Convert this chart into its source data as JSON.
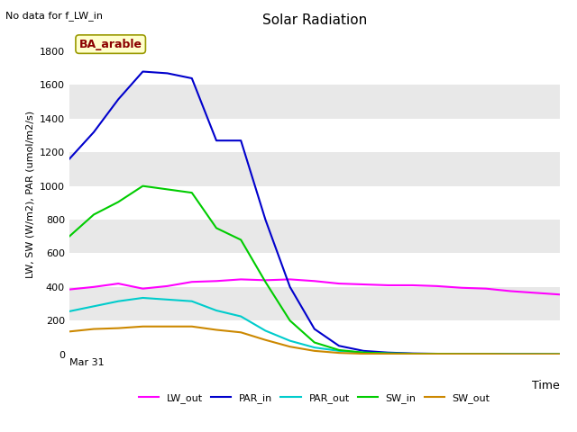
{
  "title": "Solar Radiation",
  "note": "No data for f_LW_in",
  "xlabel": "Time",
  "ylabel": "LW, SW (W/m2), PAR (umol/m2/s)",
  "annotation": "BA_arable",
  "ylim": [
    0,
    1900
  ],
  "yticks": [
    0,
    200,
    400,
    600,
    800,
    1000,
    1200,
    1400,
    1600,
    1800
  ],
  "x_start_label": "Mar 31",
  "series": {
    "LW_out": {
      "color": "#ff00ff",
      "x": [
        0,
        1,
        2,
        3,
        4,
        5,
        6,
        7,
        8,
        9,
        10,
        11,
        12,
        13,
        14,
        15,
        16,
        17,
        18,
        19,
        20
      ],
      "y": [
        385,
        400,
        420,
        390,
        405,
        430,
        435,
        445,
        440,
        445,
        435,
        420,
        415,
        410,
        410,
        405,
        395,
        390,
        375,
        365,
        355
      ]
    },
    "PAR_in": {
      "color": "#0000cc",
      "x": [
        0,
        1,
        2,
        3,
        4,
        5,
        6,
        7,
        8,
        9,
        10,
        11,
        12,
        13,
        14,
        15,
        16,
        17,
        18,
        19,
        20
      ],
      "y": [
        1160,
        1320,
        1515,
        1680,
        1670,
        1640,
        1270,
        1270,
        800,
        400,
        150,
        50,
        20,
        10,
        5,
        3,
        2,
        2,
        1,
        1,
        0
      ]
    },
    "PAR_out": {
      "color": "#00cccc",
      "x": [
        0,
        1,
        2,
        3,
        4,
        5,
        6,
        7,
        8,
        9,
        10,
        11,
        12,
        13,
        14,
        15,
        16,
        17,
        18,
        19,
        20
      ],
      "y": [
        255,
        285,
        315,
        335,
        325,
        315,
        260,
        225,
        140,
        80,
        40,
        20,
        10,
        5,
        3,
        2,
        1,
        1,
        0,
        0,
        0
      ]
    },
    "SW_in": {
      "color": "#00cc00",
      "x": [
        0,
        1,
        2,
        3,
        4,
        5,
        6,
        7,
        8,
        9,
        10,
        11,
        12,
        13,
        14,
        15,
        16,
        17,
        18,
        19,
        20
      ],
      "y": [
        700,
        830,
        905,
        1000,
        980,
        960,
        750,
        680,
        430,
        200,
        70,
        25,
        10,
        5,
        3,
        2,
        1,
        1,
        0,
        0,
        0
      ]
    },
    "SW_out": {
      "color": "#cc8800",
      "x": [
        0,
        1,
        2,
        3,
        4,
        5,
        6,
        7,
        8,
        9,
        10,
        11,
        12,
        13,
        14,
        15,
        16,
        17,
        18,
        19,
        20
      ],
      "y": [
        135,
        150,
        155,
        165,
        165,
        165,
        145,
        130,
        85,
        45,
        20,
        8,
        3,
        2,
        1,
        1,
        1,
        1,
        0,
        0,
        0
      ]
    }
  },
  "legend": [
    {
      "label": "LW_out",
      "color": "#ff00ff"
    },
    {
      "label": "PAR_in",
      "color": "#0000cc"
    },
    {
      "label": "PAR_out",
      "color": "#00cccc"
    },
    {
      "label": "SW_in",
      "color": "#00cc00"
    },
    {
      "label": "SW_out",
      "color": "#cc8800"
    }
  ],
  "band_colors": [
    "#ffffff",
    "#e8e8e8"
  ]
}
